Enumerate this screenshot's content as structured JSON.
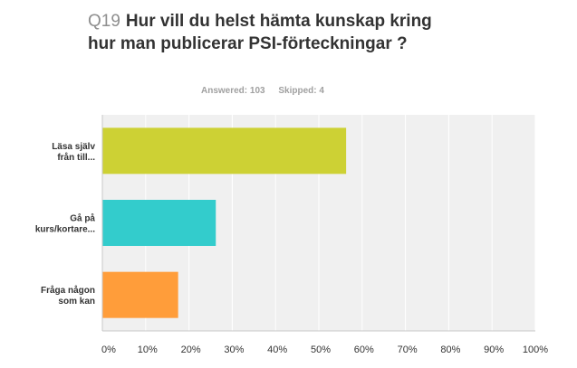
{
  "question": {
    "number": "Q19",
    "title_line1": "Hur vill du helst hämta kunskap kring",
    "title_line2": "hur man publicerar PSI-förteckningar ?"
  },
  "stats": {
    "answered": "Answered: 103",
    "skipped": "Skipped: 4"
  },
  "colors": {
    "plot_background": "#f0f0f0",
    "gridline": "#ffffff",
    "axis": "#c8c8c8"
  },
  "chart_data": {
    "type": "bar",
    "orientation": "horizontal",
    "categories": [
      [
        "Läsa själv",
        "från till..."
      ],
      [
        "Gå på",
        "kurs/kortare..."
      ],
      [
        "Fråga någon",
        "som kan"
      ]
    ],
    "values": [
      56.3,
      26.2,
      17.5
    ],
    "bar_colors": [
      "#cdd134",
      "#33cccc",
      "#ff9d3a"
    ],
    "xlim": [
      0,
      100
    ],
    "xticks": [
      0,
      10,
      20,
      30,
      40,
      50,
      60,
      70,
      80,
      90,
      100
    ],
    "xtick_labels": [
      "0%",
      "10%",
      "20%",
      "30%",
      "40%",
      "50%",
      "60%",
      "70%",
      "80%",
      "90%",
      "100%"
    ],
    "grid": true
  }
}
